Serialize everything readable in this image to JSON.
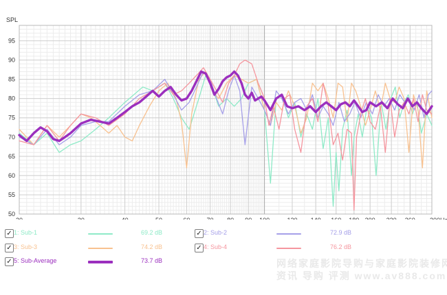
{
  "chart_data": {
    "type": "line",
    "ylabel": "SPL",
    "xunit": "Hz",
    "xscale": "log",
    "xlim": [
      20,
      300
    ],
    "ylim": [
      50,
      99
    ],
    "yticks": [
      50,
      55,
      60,
      65,
      70,
      75,
      80,
      85,
      90,
      95
    ],
    "xticks": [
      20,
      30,
      40,
      50,
      60,
      70,
      80,
      90,
      100,
      120,
      140,
      160,
      180,
      200,
      230,
      260,
      300
    ],
    "xtick_labels": [
      "20",
      "30",
      "40",
      "50",
      "60",
      "70",
      "80",
      "90",
      "100",
      "120",
      "140",
      "160",
      "180",
      "200",
      "230",
      "260",
      "300Hz"
    ],
    "grid": true,
    "series": [
      {
        "id": "sub1",
        "name": "1: Sub-1",
        "level": "69.2 dB",
        "color": "#8eeac7",
        "x": [
          20,
          22,
          24,
          26,
          28,
          30,
          33,
          36,
          40,
          45,
          48,
          52,
          55,
          58,
          61,
          65,
          68,
          71,
          74,
          78,
          82,
          86,
          90,
          95,
          100,
          104,
          108,
          112,
          117,
          122,
          127,
          132,
          137,
          142,
          147,
          152,
          157,
          160,
          163,
          167,
          172,
          177,
          180,
          185,
          190,
          196,
          202,
          208,
          215,
          222,
          229,
          236,
          243,
          250,
          257,
          264,
          272,
          280,
          290,
          300
        ],
        "y": [
          71,
          68,
          71,
          66,
          68,
          69,
          72,
          75,
          79,
          83,
          82,
          84,
          80,
          75,
          72,
          80,
          86,
          83,
          78,
          80,
          78,
          80,
          84,
          85,
          77,
          58,
          80,
          81,
          75,
          79,
          70,
          76,
          72,
          80,
          67,
          75,
          52,
          66,
          56,
          72,
          77,
          60,
          70,
          76,
          70,
          78,
          75,
          60,
          79,
          72,
          80,
          83,
          75,
          79,
          81,
          76,
          79,
          71,
          76,
          73
        ]
      },
      {
        "id": "sub3",
        "name": "3: Sub-3",
        "level": "74.2 dB",
        "color": "#f8c18f",
        "x": [
          20,
          22,
          24,
          26,
          28,
          30,
          32,
          34,
          36,
          38,
          40,
          42,
          44,
          47,
          50,
          53,
          56,
          58,
          60,
          62,
          65,
          68,
          71,
          74,
          78,
          82,
          86,
          90,
          95,
          100,
          104,
          108,
          112,
          117,
          122,
          127,
          132,
          137,
          142,
          147,
          152,
          157,
          162,
          167,
          172,
          177,
          182,
          188,
          194,
          200,
          207,
          214,
          221,
          228,
          235,
          242,
          250,
          258,
          266,
          274,
          282,
          290,
          300
        ],
        "y": [
          72,
          68,
          73,
          70,
          73,
          76,
          75,
          73,
          71,
          73,
          70,
          69,
          73,
          78,
          82,
          84,
          80,
          74,
          62,
          76,
          85,
          87,
          82,
          80,
          84,
          86,
          85,
          84,
          85,
          77,
          73,
          79,
          77,
          82,
          78,
          71,
          75,
          84,
          82,
          84,
          80,
          75,
          84,
          83,
          74,
          84,
          82,
          78,
          73,
          77,
          82,
          77,
          84,
          80,
          79,
          83,
          80,
          66,
          81,
          77,
          62,
          82,
          75
        ]
      },
      {
        "id": "sub2",
        "name": "2: Sub-2",
        "level": "72.9 dB",
        "color": "#a59fe8",
        "x": [
          20,
          22,
          24,
          26,
          28,
          30,
          33,
          36,
          40,
          44,
          48,
          52,
          55,
          58,
          61,
          64,
          67,
          70,
          73,
          76,
          79,
          82,
          85,
          88,
          92,
          96,
          100,
          104,
          108,
          112,
          117,
          122,
          127,
          132,
          137,
          142,
          147,
          152,
          157,
          163,
          169,
          175,
          181,
          188,
          195,
          203,
          211,
          219,
          227,
          235,
          243,
          251,
          259,
          267,
          276,
          285,
          293,
          300
        ],
        "y": [
          70,
          68,
          72,
          68,
          70,
          73,
          74,
          74,
          78,
          81,
          82,
          85,
          81,
          77,
          79,
          83,
          87,
          85,
          80,
          76,
          82,
          86,
          82,
          68,
          83,
          80,
          77,
          73,
          82,
          80,
          76,
          79,
          80,
          77,
          81,
          75,
          78,
          76,
          73,
          79,
          74,
          76,
          79,
          75,
          79,
          76,
          81,
          78,
          80,
          77,
          81,
          79,
          80,
          77,
          81,
          75,
          81,
          82
        ]
      },
      {
        "id": "sub4",
        "name": "4: Sub-4",
        "level": "76.2 dB",
        "color": "#f5959e",
        "x": [
          20,
          22,
          24,
          26,
          28,
          30,
          33,
          36,
          40,
          44,
          48,
          52,
          55,
          58,
          61,
          64,
          67,
          70,
          73,
          76,
          79,
          82,
          85,
          88,
          92,
          96,
          100,
          103,
          106,
          110,
          114,
          118,
          122,
          127,
          132,
          137,
          142,
          147,
          152,
          157,
          162,
          167,
          172,
          177,
          180,
          183,
          188,
          194,
          200,
          207,
          214,
          221,
          228,
          235,
          242,
          250,
          258,
          266,
          274,
          282,
          290,
          300
        ],
        "y": [
          69,
          68,
          73,
          69,
          73,
          76,
          75,
          73,
          76,
          80,
          82,
          84,
          81,
          82,
          84,
          86,
          88,
          85,
          82,
          79,
          84,
          86,
          89,
          90,
          89,
          84,
          80,
          73,
          78,
          72,
          80,
          81,
          72,
          66,
          78,
          80,
          74,
          84,
          78,
          68,
          71,
          64,
          72,
          71,
          51,
          70,
          76,
          80,
          74,
          72,
          78,
          66,
          80,
          70,
          77,
          79,
          76,
          80,
          74,
          81,
          77,
          76
        ]
      },
      {
        "id": "avg",
        "name": "5: Sub-Average",
        "level": "73.7 dB",
        "color": "#9b2fbe",
        "x": [
          20,
          21,
          22,
          23,
          24,
          25,
          26,
          27,
          28,
          30,
          32,
          34,
          36,
          38,
          40,
          42,
          44,
          46,
          48,
          50,
          52,
          54,
          56,
          58,
          60,
          62,
          64,
          66,
          68,
          70,
          72,
          74,
          76,
          78,
          80,
          82,
          84,
          86,
          88,
          90,
          92,
          94,
          96,
          98,
          100,
          104,
          108,
          112,
          116,
          120,
          125,
          130,
          135,
          140,
          145,
          150,
          155,
          160,
          165,
          170,
          175,
          180,
          185,
          190,
          195,
          200,
          208,
          216,
          224,
          232,
          240,
          248,
          256,
          264,
          272,
          280,
          290,
          300
        ],
        "y": [
          70.5,
          69,
          71,
          72.5,
          71.5,
          69.5,
          69,
          70,
          71,
          73.5,
          74.5,
          74,
          73.5,
          75,
          76.5,
          78,
          79,
          80.5,
          82,
          80.5,
          82,
          83,
          81,
          79.5,
          80,
          82,
          84.5,
          87,
          86.5,
          84,
          81,
          82.5,
          84.5,
          85.5,
          86,
          87,
          86,
          84,
          81,
          80,
          81.5,
          79.5,
          80,
          80.5,
          79.5,
          77,
          80,
          81,
          78,
          77.5,
          78,
          77,
          78,
          76.5,
          78,
          79,
          78,
          77,
          78.5,
          79,
          78,
          79.5,
          78,
          76.5,
          77,
          79,
          78,
          79,
          77.5,
          80,
          78.5,
          77.5,
          80,
          78,
          79,
          77.5,
          76,
          78
        ]
      }
    ]
  },
  "legend": {
    "rows": [
      [
        {
          "id": "sub1",
          "checked": "✓",
          "name": "1: Sub-1",
          "level": "69.2 dB",
          "color": "#8eeac7"
        },
        {
          "id": "sub2",
          "checked": "✓",
          "name": "2: Sub-2",
          "level": "72.9 dB",
          "color": "#a59fe8"
        }
      ],
      [
        {
          "id": "sub3",
          "checked": "✓",
          "name": "3: Sub-3",
          "level": "74.2 dB",
          "color": "#f8c18f"
        },
        {
          "id": "sub4",
          "checked": "✓",
          "name": "4: Sub-4",
          "level": "76.2 dB",
          "color": "#f5959e"
        }
      ],
      [
        {
          "id": "avg",
          "checked": "✓",
          "name": "5: Sub-Average",
          "level": "73.7 dB",
          "color": "#9b2fbe"
        }
      ]
    ]
  },
  "watermark": {
    "line1": "网络家庭影院导购与家庭影院装修网",
    "line2": "资讯 导购 评测 www.av888.com"
  }
}
